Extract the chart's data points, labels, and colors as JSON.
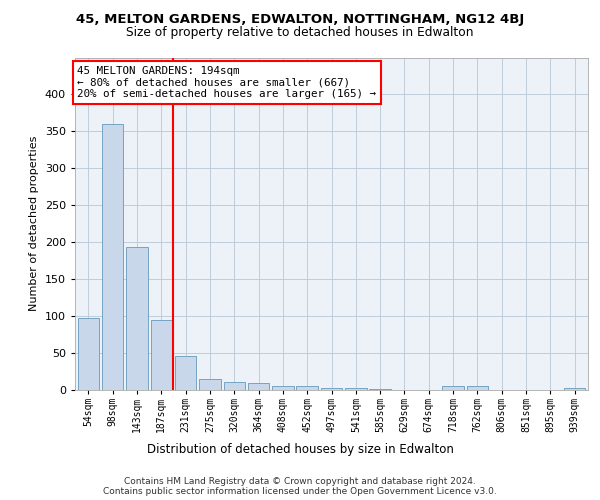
{
  "title": "45, MELTON GARDENS, EDWALTON, NOTTINGHAM, NG12 4BJ",
  "subtitle": "Size of property relative to detached houses in Edwalton",
  "xlabel": "Distribution of detached houses by size in Edwalton",
  "ylabel": "Number of detached properties",
  "bar_color": "#c8d8ea",
  "bar_edge_color": "#6699bb",
  "annotation_text": "45 MELTON GARDENS: 194sqm\n← 80% of detached houses are smaller (667)\n20% of semi-detached houses are larger (165) →",
  "categories": [
    "54sqm",
    "98sqm",
    "143sqm",
    "187sqm",
    "231sqm",
    "275sqm",
    "320sqm",
    "364sqm",
    "408sqm",
    "452sqm",
    "497sqm",
    "541sqm",
    "585sqm",
    "629sqm",
    "674sqm",
    "718sqm",
    "762sqm",
    "806sqm",
    "851sqm",
    "895sqm",
    "939sqm"
  ],
  "values": [
    97,
    360,
    193,
    95,
    46,
    15,
    11,
    10,
    5,
    6,
    3,
    3,
    1,
    0,
    0,
    6,
    5,
    0,
    0,
    0,
    3
  ],
  "footer": "Contains HM Land Registry data © Crown copyright and database right 2024.\nContains public sector information licensed under the Open Government Licence v3.0.",
  "ylim_max": 450,
  "yticks": [
    0,
    50,
    100,
    150,
    200,
    250,
    300,
    350,
    400
  ],
  "background_color": "#edf2f8",
  "grid_color": "#c0ccd8",
  "red_line_xidx": 3.5
}
